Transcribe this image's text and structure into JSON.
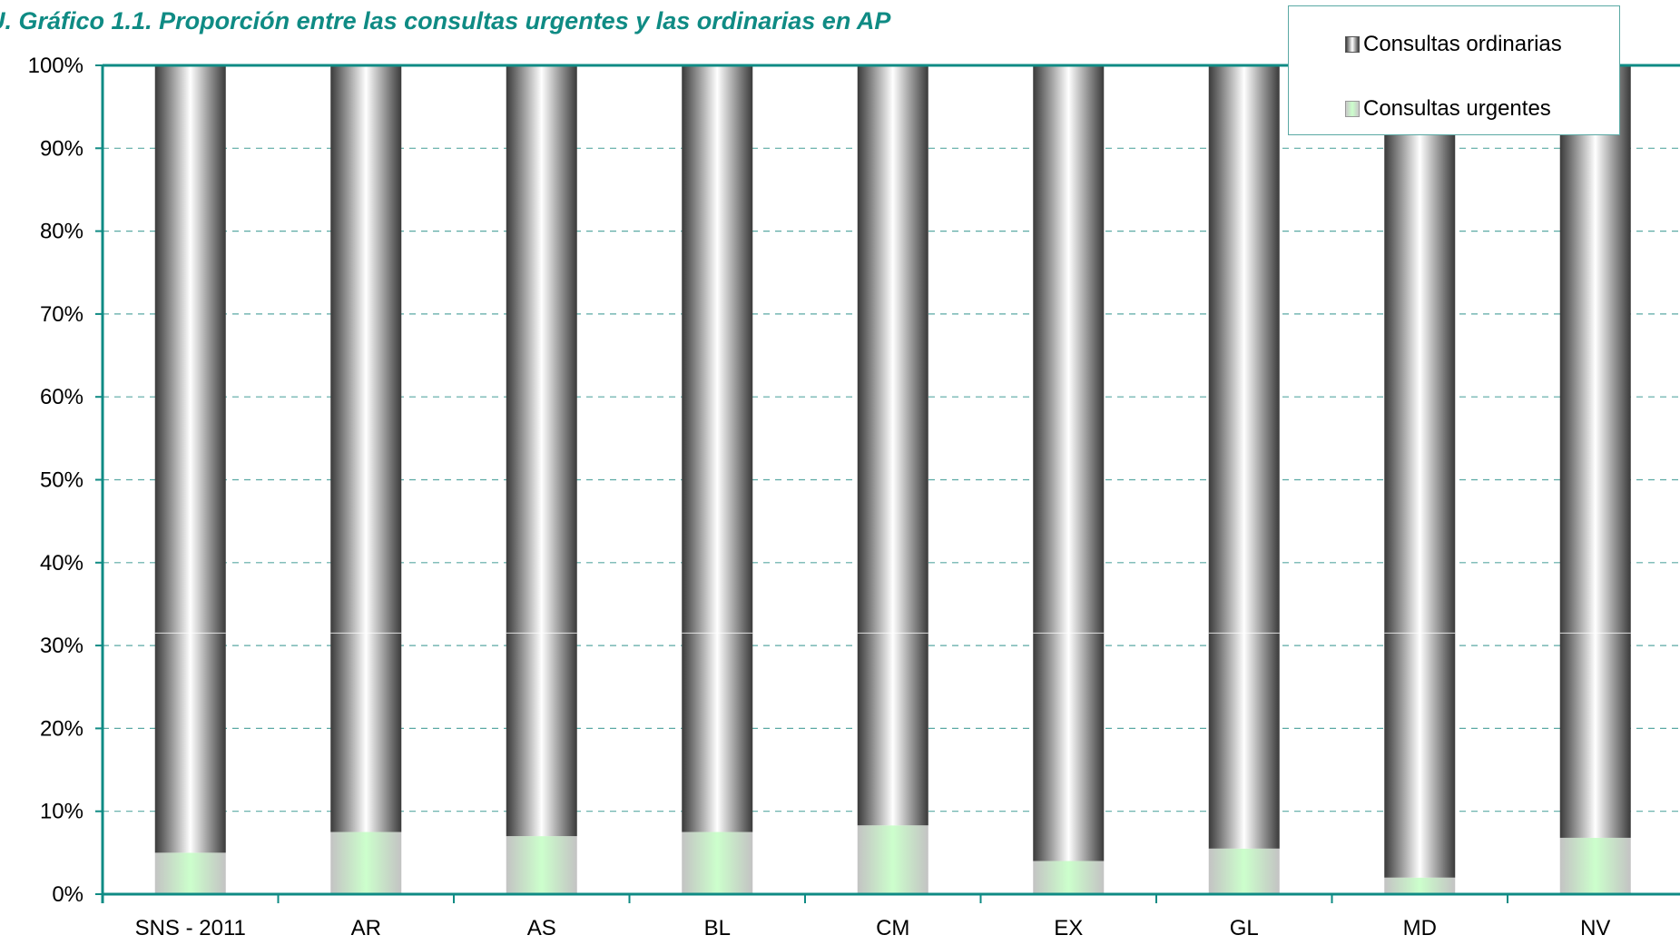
{
  "chart_data": {
    "type": "bar",
    "stacked": true,
    "title": "Gráfico 1.1. Proporción entre las consultas urgentes y las ordinarias en AP",
    "title_prefix": "U.",
    "categories": [
      "SNS - 2011",
      "AR",
      "AS",
      "BL",
      "CM",
      "EX",
      "GL",
      "MD",
      "NV"
    ],
    "series": [
      {
        "name": "Consultas urgentes",
        "values": [
          5,
          7.5,
          7,
          7.5,
          8.3,
          4,
          5.5,
          2,
          6.8
        ]
      },
      {
        "name": "Consultas ordinarias",
        "values": [
          95,
          92.5,
          93,
          92.5,
          91.7,
          96,
          94.5,
          98,
          93.2
        ]
      }
    ],
    "yticks": [
      "0%",
      "10%",
      "20%",
      "30%",
      "40%",
      "50%",
      "60%",
      "70%",
      "80%",
      "90%",
      "100%"
    ],
    "ylim": [
      0,
      100
    ],
    "grid": true,
    "legend_position": "top-right",
    "colors": {
      "axis": "#0f8b84",
      "title": "#0f8b84",
      "grid": "#5aa9a4",
      "urgentes": "#ccffcc",
      "ordinarias": "#3a3a3a"
    }
  },
  "legend": {
    "items": [
      {
        "label": "Consultas ordinarias"
      },
      {
        "label": "Consultas urgentes"
      }
    ]
  }
}
